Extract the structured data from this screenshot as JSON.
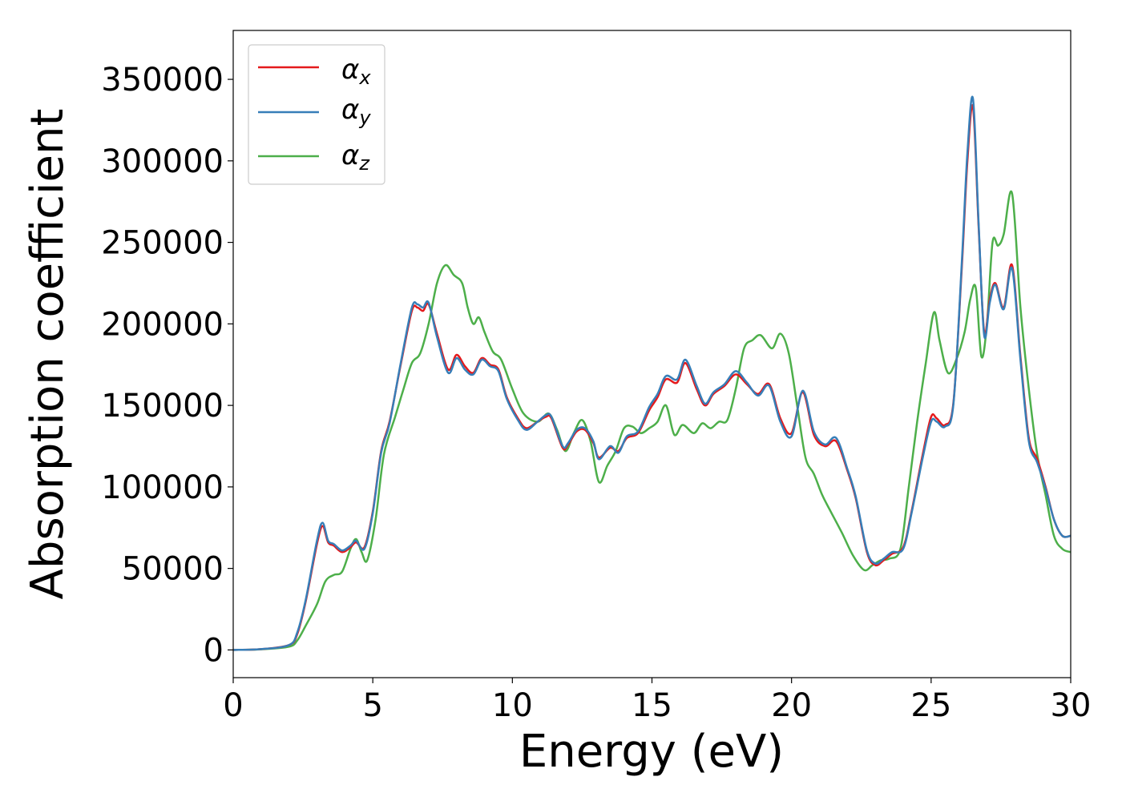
{
  "chart_data": {
    "type": "line",
    "xlabel": "Energy (eV)",
    "ylabel": "Absorption coefficient",
    "xlim": [
      0,
      30
    ],
    "ylim": [
      -17000,
      380000
    ],
    "xticks": [
      0,
      5,
      10,
      15,
      20,
      25,
      30
    ],
    "xtick_labels": [
      "0",
      "5",
      "10",
      "15",
      "20",
      "25",
      "30"
    ],
    "yticks": [
      0,
      50000,
      100000,
      150000,
      200000,
      250000,
      300000,
      350000
    ],
    "ytick_labels": [
      "0",
      "50000",
      "100000",
      "150000",
      "200000",
      "250000",
      "300000",
      "350000"
    ],
    "grid": false,
    "legend_position": "top-left",
    "series": [
      {
        "name": "αx",
        "symbol": "α",
        "subscript": "x",
        "color": "#e41a1c",
        "x": [
          0,
          1,
          2,
          2.3,
          2.6,
          3.0,
          3.2,
          3.4,
          3.6,
          3.9,
          4.2,
          4.4,
          4.7,
          5.0,
          5.3,
          5.6,
          6.0,
          6.4,
          6.6,
          6.8,
          7.0,
          7.3,
          7.7,
          8.0,
          8.3,
          8.6,
          8.9,
          9.2,
          9.5,
          9.8,
          10.2,
          10.5,
          10.9,
          11.2,
          11.4,
          11.8,
          12.0,
          12.3,
          12.6,
          12.9,
          13.1,
          13.5,
          13.8,
          14.1,
          14.5,
          14.9,
          15.2,
          15.5,
          15.9,
          16.2,
          16.6,
          16.9,
          17.2,
          17.6,
          18.0,
          18.4,
          18.8,
          19.2,
          19.6,
          20.0,
          20.4,
          20.8,
          21.2,
          21.6,
          22.0,
          22.3,
          22.7,
          23.0,
          23.3,
          23.6,
          24.0,
          24.3,
          24.7,
          25.0,
          25.2,
          25.5,
          25.8,
          26.1,
          26.3,
          26.5,
          26.7,
          26.9,
          27.1,
          27.3,
          27.6,
          27.9,
          28.2,
          28.5,
          28.8,
          29.1,
          29.4,
          29.7,
          30.0
        ],
        "y": [
          0,
          500,
          3000,
          10000,
          30000,
          65000,
          76000,
          66000,
          64000,
          60000,
          63000,
          66000,
          63000,
          85000,
          122000,
          140000,
          175000,
          208000,
          210000,
          208000,
          212000,
          194000,
          172000,
          181000,
          174000,
          170000,
          179000,
          175000,
          172000,
          155000,
          142000,
          136000,
          140000,
          143000,
          142000,
          124000,
          126000,
          134000,
          135000,
          127000,
          118000,
          124000,
          122000,
          130000,
          133000,
          147000,
          155000,
          166000,
          164000,
          176000,
          160000,
          150000,
          157000,
          162000,
          169000,
          163000,
          157000,
          163000,
          142000,
          133000,
          158000,
          132000,
          125000,
          128000,
          110000,
          93000,
          60000,
          52000,
          55000,
          59000,
          63000,
          85000,
          120000,
          143000,
          142000,
          138000,
          152000,
          235000,
          300000,
          333000,
          260000,
          195000,
          215000,
          225000,
          210000,
          236000,
          180000,
          130000,
          117000,
          100000,
          80000,
          70000,
          70000
        ]
      },
      {
        "name": "αy",
        "symbol": "α",
        "subscript": "y",
        "color": "#377eb8",
        "x": [
          0,
          1,
          2,
          2.3,
          2.6,
          3.0,
          3.2,
          3.4,
          3.6,
          3.9,
          4.2,
          4.4,
          4.7,
          5.0,
          5.3,
          5.6,
          6.0,
          6.4,
          6.6,
          6.8,
          7.0,
          7.3,
          7.7,
          8.0,
          8.3,
          8.6,
          8.9,
          9.2,
          9.5,
          9.8,
          10.2,
          10.5,
          10.9,
          11.2,
          11.4,
          11.8,
          12.0,
          12.3,
          12.6,
          12.9,
          13.1,
          13.5,
          13.8,
          14.1,
          14.5,
          14.9,
          15.2,
          15.5,
          15.9,
          16.2,
          16.6,
          16.9,
          17.2,
          17.6,
          18.0,
          18.4,
          18.8,
          19.2,
          19.6,
          20.0,
          20.4,
          20.8,
          21.2,
          21.6,
          22.0,
          22.3,
          22.7,
          23.0,
          23.3,
          23.6,
          24.0,
          24.3,
          24.7,
          25.0,
          25.2,
          25.5,
          25.8,
          26.1,
          26.3,
          26.5,
          26.7,
          26.9,
          27.1,
          27.3,
          27.6,
          27.9,
          28.2,
          28.5,
          28.8,
          29.1,
          29.4,
          29.7,
          30.0
        ],
        "y": [
          0,
          500,
          3000,
          11000,
          31000,
          67000,
          78000,
          67000,
          65000,
          61000,
          64000,
          67000,
          62000,
          84000,
          121000,
          139000,
          176000,
          210000,
          212000,
          210000,
          213000,
          192000,
          170000,
          179000,
          172000,
          169000,
          178000,
          174000,
          171000,
          154000,
          141000,
          135000,
          140000,
          144000,
          143000,
          125000,
          127000,
          135000,
          136000,
          128000,
          117000,
          125000,
          121000,
          131000,
          134000,
          149000,
          157000,
          168000,
          166000,
          178000,
          162000,
          151000,
          158000,
          163000,
          171000,
          164000,
          156000,
          162000,
          140000,
          131000,
          159000,
          134000,
          126000,
          130000,
          111000,
          94000,
          61000,
          53000,
          56000,
          60000,
          62000,
          84000,
          118000,
          140000,
          140000,
          137000,
          151000,
          238000,
          305000,
          338000,
          262000,
          193000,
          213000,
          224000,
          209000,
          234000,
          178000,
          128000,
          115000,
          99000,
          80000,
          70000,
          70000
        ]
      },
      {
        "name": "αz",
        "symbol": "α",
        "subscript": "z",
        "color": "#4daf4a",
        "x": [
          0,
          1,
          2,
          2.3,
          2.6,
          3.0,
          3.3,
          3.6,
          3.9,
          4.2,
          4.4,
          4.6,
          4.8,
          5.1,
          5.4,
          5.8,
          6.1,
          6.4,
          6.7,
          7.0,
          7.3,
          7.6,
          7.9,
          8.2,
          8.4,
          8.6,
          8.8,
          9.0,
          9.3,
          9.6,
          10.0,
          10.4,
          10.9,
          11.3,
          11.6,
          11.9,
          12.2,
          12.5,
          12.8,
          13.1,
          13.4,
          13.7,
          14.0,
          14.3,
          14.6,
          14.9,
          15.2,
          15.5,
          15.8,
          16.1,
          16.5,
          16.8,
          17.1,
          17.4,
          17.7,
          18.0,
          18.3,
          18.6,
          18.9,
          19.3,
          19.6,
          19.9,
          20.2,
          20.5,
          20.8,
          21.1,
          21.4,
          21.8,
          22.2,
          22.6,
          22.9,
          23.2,
          23.5,
          23.9,
          24.2,
          24.5,
          24.8,
          25.1,
          25.3,
          25.6,
          25.9,
          26.2,
          26.4,
          26.6,
          26.8,
          27.0,
          27.2,
          27.4,
          27.6,
          27.9,
          28.2,
          28.5,
          28.8,
          29.1,
          29.4,
          29.7,
          30.0
        ],
        "y": [
          0,
          400,
          2000,
          6000,
          15000,
          28000,
          42000,
          46000,
          48000,
          62000,
          68000,
          60000,
          55000,
          80000,
          120000,
          143000,
          160000,
          176000,
          182000,
          200000,
          225000,
          236000,
          230000,
          225000,
          210000,
          200000,
          204000,
          195000,
          183000,
          178000,
          160000,
          145000,
          140000,
          145000,
          135000,
          122000,
          133000,
          141000,
          128000,
          103000,
          113000,
          122000,
          136000,
          137000,
          133000,
          136000,
          140000,
          150000,
          132000,
          138000,
          133000,
          139000,
          136000,
          140000,
          141000,
          160000,
          185000,
          190000,
          193000,
          185000,
          194000,
          182000,
          150000,
          118000,
          108000,
          95000,
          85000,
          72000,
          58000,
          49000,
          52000,
          55000,
          56000,
          62000,
          100000,
          140000,
          175000,
          207000,
          190000,
          170000,
          178000,
          195000,
          215000,
          222000,
          180000,
          200000,
          250000,
          248000,
          255000,
          280000,
          210000,
          160000,
          120000,
          95000,
          70000,
          62000,
          60000
        ]
      }
    ]
  }
}
